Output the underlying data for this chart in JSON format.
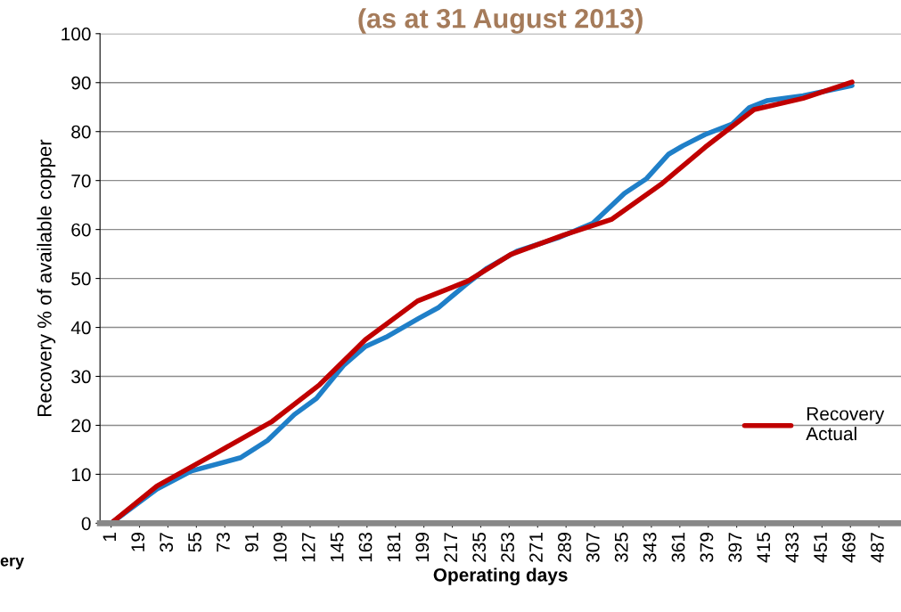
{
  "chart_data": {
    "type": "line",
    "title": "(as at 31 August 2013)",
    "xlabel": "Operating days",
    "ylabel": "Recovery % of available copper",
    "xlim": [
      -6,
      501
    ],
    "xticks": [
      1,
      19,
      37,
      55,
      73,
      91,
      109,
      127,
      145,
      163,
      181,
      199,
      217,
      235,
      253,
      271,
      289,
      307,
      325,
      343,
      361,
      379,
      397,
      415,
      433,
      451,
      469,
      487
    ],
    "ylim": [
      0,
      100
    ],
    "yticks": [
      0,
      10,
      20,
      30,
      40,
      50,
      60,
      70,
      80,
      90,
      100
    ],
    "grid": "y",
    "legend": "right",
    "marker": "none",
    "line_style": "solid",
    "annotations": [
      "ery"
    ],
    "series": [
      {
        "color": "#1f7fc8",
        "x": [
          1,
          30,
          52,
          83,
          100,
          117,
          131,
          148,
          162,
          175,
          196,
          208,
          225,
          239,
          258,
          284,
          306,
          326,
          340,
          354,
          363,
          377,
          394,
          405,
          416,
          439,
          470
        ],
        "values": [
          0,
          7.0,
          10.7,
          13.4,
          16.9,
          22.2,
          25.5,
          32.2,
          36.1,
          38.0,
          41.9,
          44.0,
          48.6,
          52.1,
          55.6,
          58.3,
          61.3,
          67.4,
          70.4,
          75.4,
          77.1,
          79.4,
          81.5,
          84.9,
          86.3,
          87.3,
          89.4
        ]
      },
      {
        "name": "Recovery\nActual",
        "color": "#c00000",
        "x": [
          1,
          30,
          69,
          103,
          133,
          162,
          195,
          227,
          254,
          287,
          318,
          349,
          377,
          408,
          439,
          470
        ],
        "values": [
          0,
          7.6,
          14.6,
          20.8,
          28.3,
          37.5,
          45.4,
          49.5,
          54.9,
          58.8,
          62.1,
          69.2,
          76.8,
          84.5,
          86.8,
          90.1
        ]
      }
    ]
  }
}
